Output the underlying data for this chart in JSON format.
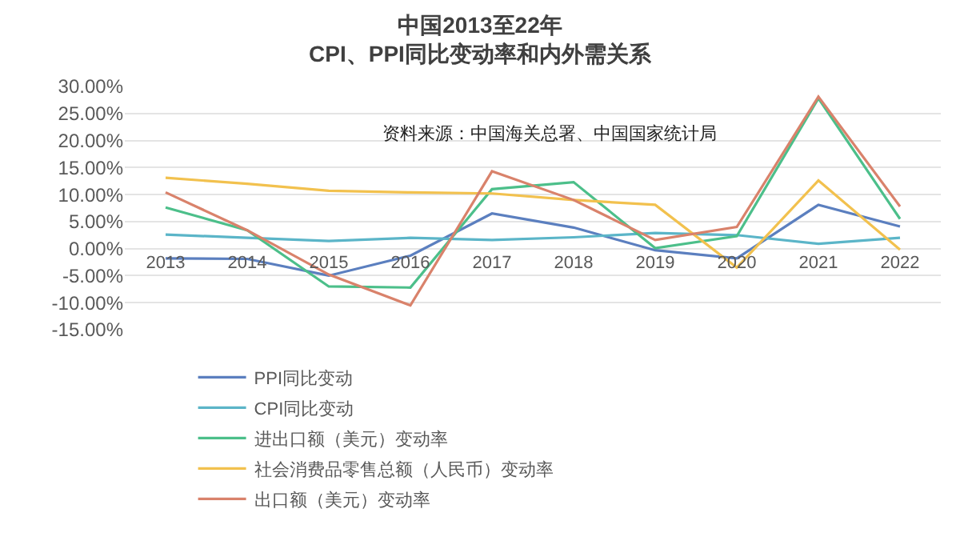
{
  "chart_data": {
    "type": "line",
    "title": "中国2013至22年\nCPI、PPI同比变动率和内外需关系",
    "annotations": [
      "资料来源：中国海关总署、中国国家统计局"
    ],
    "categories": [
      "2013",
      "2014",
      "2015",
      "2016",
      "2017",
      "2018",
      "2019",
      "2020",
      "2021",
      "2022"
    ],
    "series": [
      {
        "name": "PPI同比变动",
        "color": "#5b7fbf",
        "values": [
          -1.8,
          -1.9,
          -5.0,
          -1.3,
          6.5,
          3.9,
          -0.3,
          -1.8,
          8.1,
          4.1
        ]
      },
      {
        "name": "CPI同比变动",
        "color": "#5bb5c8",
        "values": [
          2.6,
          2.0,
          1.4,
          2.0,
          1.6,
          2.1,
          2.9,
          2.5,
          0.9,
          2.0
        ]
      },
      {
        "name": "进出口额（美元）变动率",
        "color": "#4cbf8a",
        "values": [
          7.6,
          3.4,
          -7.0,
          -7.2,
          11.0,
          12.3,
          0.1,
          2.3,
          27.8,
          5.5
        ]
      },
      {
        "name": "社会消费品零售总额（人民币）变动率",
        "color": "#f2c14e",
        "values": [
          13.1,
          12.0,
          10.7,
          10.4,
          10.2,
          9.0,
          8.1,
          -3.5,
          12.6,
          -0.2
        ]
      },
      {
        "name": "出口额（美元）变动率",
        "color": "#d9826b",
        "values": [
          10.4,
          3.4,
          -4.8,
          -10.5,
          14.3,
          9.0,
          1.6,
          4.0,
          28.1,
          7.8
        ]
      }
    ],
    "ylim": [
      -15,
      30
    ],
    "yticks": [
      {
        "value": -15,
        "label": "-15.00%"
      },
      {
        "value": -10,
        "label": "-10.00%"
      },
      {
        "value": -5,
        "label": "-5.00%"
      },
      {
        "value": 0,
        "label": "0.00%"
      },
      {
        "value": 5,
        "label": "5.00%"
      },
      {
        "value": 10,
        "label": "10.00%"
      },
      {
        "value": 15,
        "label": "15.00%"
      },
      {
        "value": 20,
        "label": "20.00%"
      },
      {
        "value": 25,
        "label": "25.00%"
      },
      {
        "value": 30,
        "label": "30.00%"
      }
    ],
    "grid": "y",
    "legend": "bottom",
    "marker": "none",
    "line_style": "solid"
  }
}
